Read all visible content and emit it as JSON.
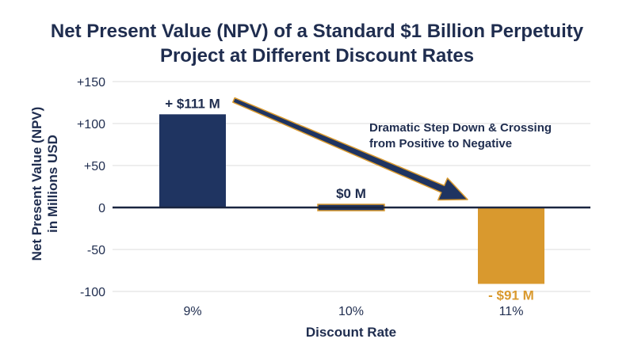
{
  "chart_data": {
    "type": "bar",
    "title": [
      "Net Present Value (NPV) of a Standard $1 Billion Perpetuity",
      "Project at Different Discount Rates"
    ],
    "xlabel": "Discount Rate",
    "ylabel": [
      "Net Present Value (NPV)",
      "in Millions USD"
    ],
    "categories": [
      "9%",
      "10%",
      "11%"
    ],
    "values": [
      111,
      0,
      -91
    ],
    "data_labels": [
      "+ $111 M",
      "$0 M",
      "- $91 M"
    ],
    "ylim": [
      -100,
      150
    ],
    "yticks": [
      150,
      100,
      50,
      0,
      -50,
      -100
    ],
    "ytick_labels": [
      "+150",
      "+100",
      "+50",
      "0",
      "-50",
      "-100"
    ],
    "grid": true,
    "colors": {
      "positive": "#1f3461",
      "zero": "#1f3461",
      "negative": "#d9992e",
      "zero_outline": "#d9992e",
      "grid": "#dcdcdc",
      "text": "#1f2d4f",
      "arrow_fill": "#1f3461",
      "arrow_outline": "#d9992e"
    },
    "annotation": {
      "text": [
        "Dramatic Step Down & Crossing",
        "from Positive to Negative"
      ],
      "from_category": 0,
      "to_category": 2
    }
  }
}
